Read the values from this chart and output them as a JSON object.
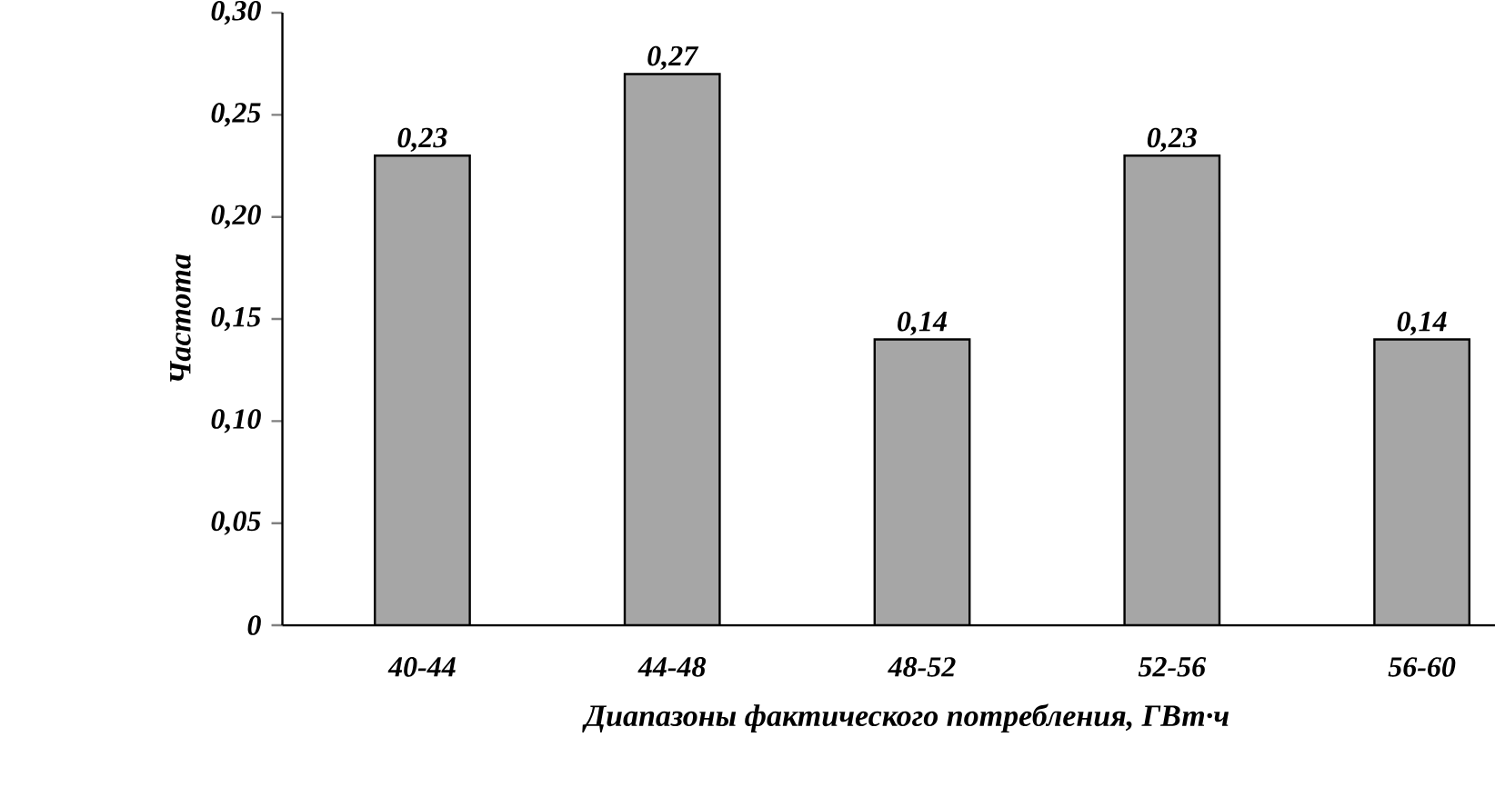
{
  "chart_data": {
    "type": "bar",
    "xlabel": "*Диапазоны фактического потребления,* ГВт·ч",
    "ylabel": "Частота",
    "categories": [
      "40-44",
      "44-48",
      "48-52",
      "52-56",
      "56-60"
    ],
    "values": [
      0.23,
      0.27,
      0.14,
      0.23,
      0.14
    ],
    "value_labels": [
      "0,23",
      "0,27",
      "0,14",
      "0,23",
      "0,14"
    ],
    "color": "#a6a6a6",
    "ylim": [
      0,
      0.3
    ],
    "yticks": [
      0,
      {
        "value": 0.05,
        "label": "0,05"
      },
      {
        "value": 0.1,
        "label": "0,10"
      },
      {
        "value": 0.15,
        "label": "0,15"
      },
      {
        "value": 0.2,
        "label": "0,20"
      },
      {
        "value": 0.25,
        "label": "0,25"
      },
      {
        "value": 0.3,
        "label": "0,30"
      }
    ],
    "grid": false
  }
}
